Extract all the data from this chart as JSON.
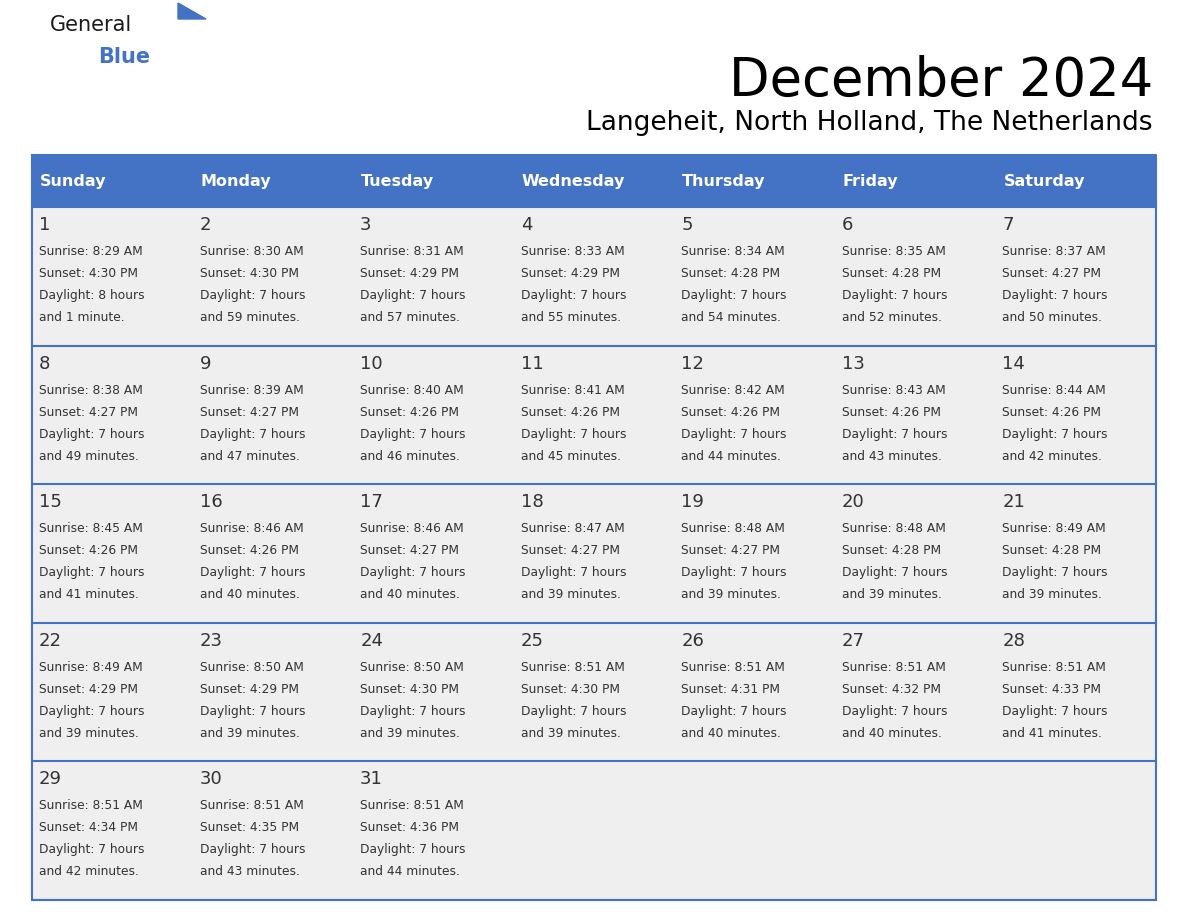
{
  "title": "December 2024",
  "subtitle": "Langeheit, North Holland, The Netherlands",
  "header_bg": "#4472C4",
  "header_text_color": "#FFFFFF",
  "cell_bg": "#EFEFEF",
  "separator_color": "#4472C4",
  "text_color": "#333333",
  "days_of_week": [
    "Sunday",
    "Monday",
    "Tuesday",
    "Wednesday",
    "Thursday",
    "Friday",
    "Saturday"
  ],
  "weeks": [
    [
      {
        "day": 1,
        "sunrise": "8:29 AM",
        "sunset": "4:30 PM",
        "daylight": "8 hours",
        "daylight2": "and 1 minute."
      },
      {
        "day": 2,
        "sunrise": "8:30 AM",
        "sunset": "4:30 PM",
        "daylight": "7 hours",
        "daylight2": "and 59 minutes."
      },
      {
        "day": 3,
        "sunrise": "8:31 AM",
        "sunset": "4:29 PM",
        "daylight": "7 hours",
        "daylight2": "and 57 minutes."
      },
      {
        "day": 4,
        "sunrise": "8:33 AM",
        "sunset": "4:29 PM",
        "daylight": "7 hours",
        "daylight2": "and 55 minutes."
      },
      {
        "day": 5,
        "sunrise": "8:34 AM",
        "sunset": "4:28 PM",
        "daylight": "7 hours",
        "daylight2": "and 54 minutes."
      },
      {
        "day": 6,
        "sunrise": "8:35 AM",
        "sunset": "4:28 PM",
        "daylight": "7 hours",
        "daylight2": "and 52 minutes."
      },
      {
        "day": 7,
        "sunrise": "8:37 AM",
        "sunset": "4:27 PM",
        "daylight": "7 hours",
        "daylight2": "and 50 minutes."
      }
    ],
    [
      {
        "day": 8,
        "sunrise": "8:38 AM",
        "sunset": "4:27 PM",
        "daylight": "7 hours",
        "daylight2": "and 49 minutes."
      },
      {
        "day": 9,
        "sunrise": "8:39 AM",
        "sunset": "4:27 PM",
        "daylight": "7 hours",
        "daylight2": "and 47 minutes."
      },
      {
        "day": 10,
        "sunrise": "8:40 AM",
        "sunset": "4:26 PM",
        "daylight": "7 hours",
        "daylight2": "and 46 minutes."
      },
      {
        "day": 11,
        "sunrise": "8:41 AM",
        "sunset": "4:26 PM",
        "daylight": "7 hours",
        "daylight2": "and 45 minutes."
      },
      {
        "day": 12,
        "sunrise": "8:42 AM",
        "sunset": "4:26 PM",
        "daylight": "7 hours",
        "daylight2": "and 44 minutes."
      },
      {
        "day": 13,
        "sunrise": "8:43 AM",
        "sunset": "4:26 PM",
        "daylight": "7 hours",
        "daylight2": "and 43 minutes."
      },
      {
        "day": 14,
        "sunrise": "8:44 AM",
        "sunset": "4:26 PM",
        "daylight": "7 hours",
        "daylight2": "and 42 minutes."
      }
    ],
    [
      {
        "day": 15,
        "sunrise": "8:45 AM",
        "sunset": "4:26 PM",
        "daylight": "7 hours",
        "daylight2": "and 41 minutes."
      },
      {
        "day": 16,
        "sunrise": "8:46 AM",
        "sunset": "4:26 PM",
        "daylight": "7 hours",
        "daylight2": "and 40 minutes."
      },
      {
        "day": 17,
        "sunrise": "8:46 AM",
        "sunset": "4:27 PM",
        "daylight": "7 hours",
        "daylight2": "and 40 minutes."
      },
      {
        "day": 18,
        "sunrise": "8:47 AM",
        "sunset": "4:27 PM",
        "daylight": "7 hours",
        "daylight2": "and 39 minutes."
      },
      {
        "day": 19,
        "sunrise": "8:48 AM",
        "sunset": "4:27 PM",
        "daylight": "7 hours",
        "daylight2": "and 39 minutes."
      },
      {
        "day": 20,
        "sunrise": "8:48 AM",
        "sunset": "4:28 PM",
        "daylight": "7 hours",
        "daylight2": "and 39 minutes."
      },
      {
        "day": 21,
        "sunrise": "8:49 AM",
        "sunset": "4:28 PM",
        "daylight": "7 hours",
        "daylight2": "and 39 minutes."
      }
    ],
    [
      {
        "day": 22,
        "sunrise": "8:49 AM",
        "sunset": "4:29 PM",
        "daylight": "7 hours",
        "daylight2": "and 39 minutes."
      },
      {
        "day": 23,
        "sunrise": "8:50 AM",
        "sunset": "4:29 PM",
        "daylight": "7 hours",
        "daylight2": "and 39 minutes."
      },
      {
        "day": 24,
        "sunrise": "8:50 AM",
        "sunset": "4:30 PM",
        "daylight": "7 hours",
        "daylight2": "and 39 minutes."
      },
      {
        "day": 25,
        "sunrise": "8:51 AM",
        "sunset": "4:30 PM",
        "daylight": "7 hours",
        "daylight2": "and 39 minutes."
      },
      {
        "day": 26,
        "sunrise": "8:51 AM",
        "sunset": "4:31 PM",
        "daylight": "7 hours",
        "daylight2": "and 40 minutes."
      },
      {
        "day": 27,
        "sunrise": "8:51 AM",
        "sunset": "4:32 PM",
        "daylight": "7 hours",
        "daylight2": "and 40 minutes."
      },
      {
        "day": 28,
        "sunrise": "8:51 AM",
        "sunset": "4:33 PM",
        "daylight": "7 hours",
        "daylight2": "and 41 minutes."
      }
    ],
    [
      {
        "day": 29,
        "sunrise": "8:51 AM",
        "sunset": "4:34 PM",
        "daylight": "7 hours",
        "daylight2": "and 42 minutes."
      },
      {
        "day": 30,
        "sunrise": "8:51 AM",
        "sunset": "4:35 PM",
        "daylight": "7 hours",
        "daylight2": "and 43 minutes."
      },
      {
        "day": 31,
        "sunrise": "8:51 AM",
        "sunset": "4:36 PM",
        "daylight": "7 hours",
        "daylight2": "and 44 minutes."
      },
      null,
      null,
      null,
      null
    ]
  ],
  "logo_text1": "General",
  "logo_triangle_color": "#4472C4",
  "logo_text2": "Blue",
  "logo_color1": "#1a1a1a",
  "logo_color2": "#4472C4",
  "fig_width": 11.88,
  "fig_height": 9.18,
  "dpi": 100
}
